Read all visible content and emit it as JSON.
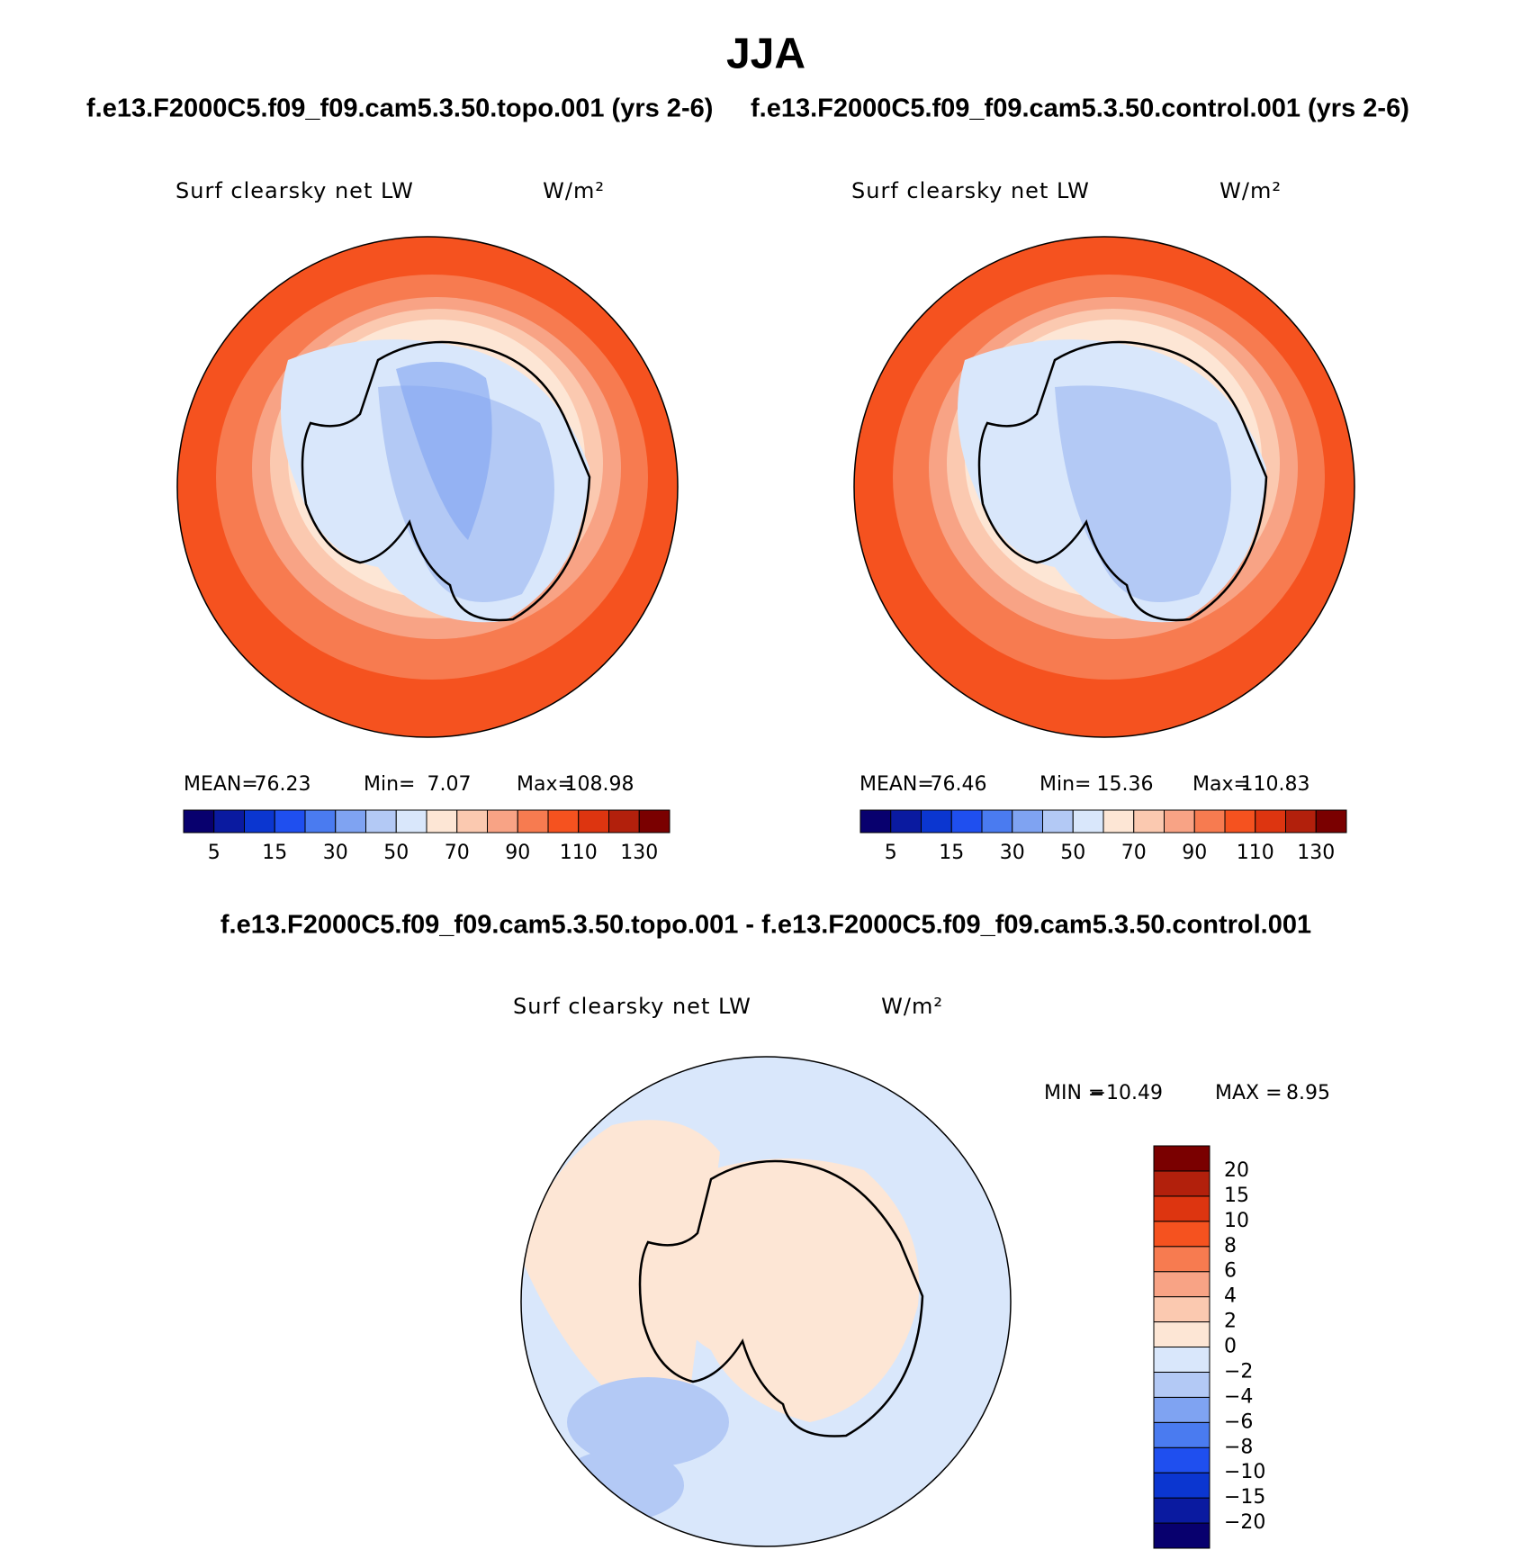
{
  "title": "JJA",
  "panels": [
    {
      "subtitle": "f.e13.F2000C5.f09_f09.cam5.3.50.topo.001 (yrs 2-6)",
      "field": "Surf clearsky net LW",
      "units": "W/m²",
      "stats": {
        "mean_label": "MEAN=",
        "mean": 76.23,
        "min_label": "Min=",
        "min": 7.07,
        "max_label": "Max=",
        "max": 108.98
      },
      "colorbar": {
        "orientation": "horizontal",
        "ticks": [
          5,
          15,
          30,
          50,
          70,
          90,
          110,
          130
        ]
      }
    },
    {
      "subtitle": "f.e13.F2000C5.f09_f09.cam5.3.50.control.001 (yrs 2-6)",
      "field": "Surf clearsky net LW",
      "units": "W/m²",
      "stats": {
        "mean_label": "MEAN=",
        "mean": 76.46,
        "min_label": "Min=",
        "min": 15.36,
        "max_label": "Max=",
        "max": 110.83
      },
      "colorbar": {
        "orientation": "horizontal",
        "ticks": [
          5,
          15,
          30,
          50,
          70,
          90,
          110,
          130
        ]
      }
    },
    {
      "subtitle": "f.e13.F2000C5.f09_f09.cam5.3.50.topo.001 - f.e13.F2000C5.f09_f09.cam5.3.50.control.001",
      "field": "Surf clearsky net LW",
      "units": "W/m²",
      "stats": {
        "min_label": "MIN =",
        "min": {
          "value": -10.49,
          "label": "−10.49"
        },
        "max_label": "MAX =",
        "max": 8.95
      },
      "colorbar": {
        "orientation": "vertical",
        "ticks": [
          {
            "value": -20,
            "label": "−20"
          },
          {
            "value": -15,
            "label": "−15"
          },
          {
            "value": -10,
            "label": "−10"
          },
          {
            "value": -8,
            "label": "−8"
          },
          {
            "value": -6,
            "label": "−6"
          },
          {
            "value": -4,
            "label": "−4"
          },
          {
            "value": -2,
            "label": "−2"
          },
          0,
          2,
          4,
          6,
          8,
          10,
          15,
          20
        ]
      }
    }
  ],
  "colors": [
    "#08006e",
    "#0a1aa0",
    "#0b36d0",
    "#1f4fef",
    "#4a7bf0",
    "#7fa3f2",
    "#b3c9f5",
    "#d9e7fb",
    "#fde6d5",
    "#fbc9b0",
    "#f8a385",
    "#f77b50",
    "#f5521f",
    "#dd3510",
    "#b2200c",
    "#7a0000"
  ]
}
